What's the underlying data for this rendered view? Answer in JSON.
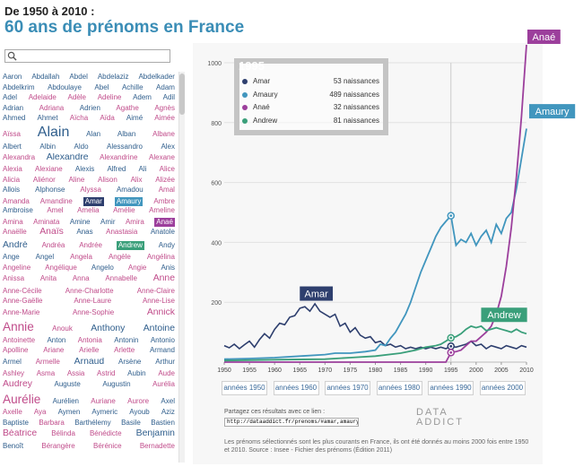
{
  "header": {
    "kicker": "De 1950 à 2010 :",
    "title": "60 ans de prénoms en France"
  },
  "search": {
    "placeholder": "",
    "value": ""
  },
  "colors": {
    "male": "#2f5e8c",
    "female": "#c04b8a",
    "Amar": "#2e3f6e",
    "Amaury": "#4196be",
    "Anaé": "#9c3f9c",
    "Andrew": "#3a9f7a"
  },
  "name_rows": [
    [
      [
        "Aaron",
        "m"
      ],
      [
        "Abdallah",
        "m"
      ],
      [
        "Abdel",
        "m"
      ],
      [
        "Abdelaziz",
        "m"
      ],
      [
        "Abdelkader",
        "m"
      ]
    ],
    [
      [
        "Abdelkrim",
        "m"
      ],
      [
        "Abdoulaye",
        "m"
      ],
      [
        "Abel",
        "m"
      ],
      [
        "Achille",
        "m"
      ],
      [
        "Adam",
        "m"
      ]
    ],
    [
      [
        "Adel",
        "m"
      ],
      [
        "Adelaide",
        "f"
      ],
      [
        "Adèle",
        "f"
      ],
      [
        "Adeline",
        "f"
      ],
      [
        "Adem",
        "m"
      ],
      [
        "Adil",
        "m"
      ]
    ],
    [
      [
        "Adrian",
        "m"
      ],
      [
        "Adriana",
        "f"
      ],
      [
        "Adrien",
        "m"
      ],
      [
        "Agathe",
        "f"
      ],
      [
        "Agnès",
        "f"
      ]
    ],
    [
      [
        "Ahmed",
        "m"
      ],
      [
        "Ahmet",
        "m"
      ],
      [
        "Aïcha",
        "f"
      ],
      [
        "Aïda",
        "f"
      ],
      [
        "Aimé",
        "m"
      ],
      [
        "Aimée",
        "f"
      ]
    ],
    [
      [
        "Aïssa",
        "f"
      ],
      [
        "Alain",
        "m",
        2
      ],
      [
        "Alan",
        "m"
      ],
      [
        "Alban",
        "m"
      ],
      [
        "Albane",
        "f"
      ]
    ],
    [
      [
        "Albert",
        "m"
      ],
      [
        "Albin",
        "m"
      ],
      [
        "Aldo",
        "m"
      ],
      [
        "Alessandro",
        "m"
      ],
      [
        "Alex",
        "m"
      ]
    ],
    [
      [
        "Alexandra",
        "f"
      ],
      [
        "Alexandre",
        "m",
        1.3
      ],
      [
        "Alexandrine",
        "f"
      ],
      [
        "Alexane",
        "f"
      ]
    ],
    [
      [
        "Alexia",
        "f"
      ],
      [
        "Alexiane",
        "f"
      ],
      [
        "Alexis",
        "m"
      ],
      [
        "Alfred",
        "m"
      ],
      [
        "Ali",
        "m"
      ],
      [
        "Alice",
        "f"
      ]
    ],
    [
      [
        "Alicia",
        "f"
      ],
      [
        "Aliénor",
        "f"
      ],
      [
        "Aline",
        "f"
      ],
      [
        "Alison",
        "f"
      ],
      [
        "Alix",
        "f"
      ],
      [
        "Alizée",
        "f"
      ]
    ],
    [
      [
        "Allois",
        "m"
      ],
      [
        "Alphonse",
        "m"
      ],
      [
        "Alyssa",
        "f"
      ],
      [
        "Amadou",
        "m"
      ],
      [
        "Amal",
        "f"
      ]
    ],
    [
      [
        "Amanda",
        "f"
      ],
      [
        "Amandine",
        "f"
      ],
      [
        "Amar",
        "hl-Amar"
      ],
      [
        "Amaury",
        "hl-Amaury"
      ],
      [
        "Ambre",
        "f"
      ]
    ],
    [
      [
        "Ambroise",
        "m"
      ],
      [
        "Amel",
        "f"
      ],
      [
        "Amelia",
        "f"
      ],
      [
        "Amélie",
        "f"
      ],
      [
        "Ameline",
        "f"
      ]
    ],
    [
      [
        "Amina",
        "f"
      ],
      [
        "Aminata",
        "f"
      ],
      [
        "Amine",
        "m"
      ],
      [
        "Amir",
        "m"
      ],
      [
        "Amira",
        "f"
      ],
      [
        "Anaé",
        "hl-Anaé"
      ]
    ],
    [
      [
        "Anaëlle",
        "f"
      ],
      [
        "Anaïs",
        "f",
        1.3
      ],
      [
        "Anas",
        "m"
      ],
      [
        "Anastasia",
        "f"
      ],
      [
        "Anatole",
        "m"
      ]
    ],
    [
      [
        "André",
        "m",
        1.3
      ],
      [
        "Andréa",
        "f"
      ],
      [
        "Andrée",
        "f"
      ],
      [
        "Andrew",
        "hl-Andrew"
      ],
      [
        "Andy",
        "m"
      ]
    ],
    [
      [
        "Ange",
        "m"
      ],
      [
        "Angel",
        "m"
      ],
      [
        "Angela",
        "f"
      ],
      [
        "Angèle",
        "f"
      ],
      [
        "Angélina",
        "f"
      ]
    ],
    [
      [
        "Angeline",
        "f"
      ],
      [
        "Angélique",
        "f"
      ],
      [
        "Angelo",
        "m"
      ],
      [
        "Angie",
        "f"
      ],
      [
        "Anis",
        "m"
      ]
    ],
    [
      [
        "Anissa",
        "f"
      ],
      [
        "Anita",
        "f"
      ],
      [
        "Anna",
        "f"
      ],
      [
        "Annabelle",
        "f"
      ],
      [
        "Anne",
        "f",
        1.3
      ]
    ],
    [
      [
        "Anne-Cécile",
        "f"
      ],
      [
        "Anne-Charlotte",
        "f"
      ],
      [
        "Anne-Claire",
        "f"
      ]
    ],
    [
      [
        "Anne-Gaëlle",
        "f"
      ],
      [
        "Anne-Laure",
        "f"
      ],
      [
        "Anne-Lise",
        "f"
      ]
    ],
    [
      [
        "Anne-Marie",
        "f"
      ],
      [
        "Anne-Sophie",
        "f"
      ],
      [
        "Annick",
        "f",
        1.3
      ]
    ],
    [
      [
        "Annie",
        "f",
        1.7
      ],
      [
        "Anouk",
        "f"
      ],
      [
        "Anthony",
        "m",
        1.3
      ],
      [
        "Antoine",
        "m",
        1.3
      ]
    ],
    [
      [
        "Antoinette",
        "f"
      ],
      [
        "Anton",
        "m"
      ],
      [
        "Antonia",
        "f"
      ],
      [
        "Antonin",
        "m"
      ],
      [
        "Antonio",
        "m"
      ]
    ],
    [
      [
        "Apolline",
        "f"
      ],
      [
        "Ariane",
        "f"
      ],
      [
        "Arielle",
        "f"
      ],
      [
        "Arlette",
        "f"
      ],
      [
        "Armand",
        "m"
      ]
    ],
    [
      [
        "Armel",
        "m"
      ],
      [
        "Armelle",
        "f"
      ],
      [
        "Arnaud",
        "m",
        1.3
      ],
      [
        "Arsène",
        "m"
      ],
      [
        "Arthur",
        "m"
      ]
    ],
    [
      [
        "Ashley",
        "f"
      ],
      [
        "Asma",
        "f"
      ],
      [
        "Assia",
        "f"
      ],
      [
        "Astrid",
        "f"
      ],
      [
        "Aubin",
        "m"
      ],
      [
        "Aude",
        "f"
      ]
    ],
    [
      [
        "Audrey",
        "f",
        1.3
      ],
      [
        "Auguste",
        "m"
      ],
      [
        "Augustin",
        "m"
      ],
      [
        "Aurélia",
        "f"
      ]
    ],
    [
      [
        "Aurélie",
        "f",
        1.7
      ],
      [
        "Aurélien",
        "m"
      ],
      [
        "Auriane",
        "f"
      ],
      [
        "Aurore",
        "f"
      ],
      [
        "Axel",
        "m"
      ]
    ],
    [
      [
        "Axelle",
        "f"
      ],
      [
        "Aya",
        "f"
      ],
      [
        "Aymen",
        "m"
      ],
      [
        "Aymeric",
        "m"
      ],
      [
        "Ayoub",
        "m"
      ],
      [
        "Aziz",
        "m"
      ]
    ],
    [
      [
        "Baptiste",
        "m"
      ],
      [
        "Barbara",
        "f"
      ],
      [
        "Barthélemy",
        "m"
      ],
      [
        "Basile",
        "m"
      ],
      [
        "Bastien",
        "m"
      ]
    ],
    [
      [
        "Béatrice",
        "f",
        1.3
      ],
      [
        "Bélinda",
        "f"
      ],
      [
        "Bénédicte",
        "f"
      ],
      [
        "Benjamin",
        "m",
        1.3
      ]
    ],
    [
      [
        "Benoît",
        "m"
      ],
      [
        "Bérangère",
        "f"
      ],
      [
        "Bérénice",
        "f"
      ],
      [
        "Bernadette",
        "f"
      ]
    ]
  ],
  "hud": {
    "year": "1995",
    "rows": [
      {
        "name": "Amar",
        "value": "53 naissances"
      },
      {
        "name": "Amaury",
        "value": "489 naissances"
      },
      {
        "name": "Anaé",
        "value": "32 naissances"
      },
      {
        "name": "Andrew",
        "value": "81 naissances"
      }
    ]
  },
  "decade_buttons": [
    "années 1950",
    "années 1960",
    "années 1970",
    "années 1980",
    "années 1990",
    "années 2000"
  ],
  "share": {
    "label": "Partagez ces résultats avec ce lien :",
    "url": "http://dataaddict.fr/prenoms/#amar,amaury,anae,andrew"
  },
  "brand": "DATA ADDICT",
  "footnote": "Les prénoms sélectionnés sont les plus courants en France, ils ont été donnés au moins 2000 fois entre 1950 et 2010. Source : Insee - Fichier des prénoms (Édition 2011)",
  "chart_data": {
    "type": "line",
    "x_ticks": [
      "1950",
      "1955",
      "1960",
      "1965",
      "1970",
      "1975",
      "1980",
      "1985",
      "1990",
      "1995",
      "2000",
      "2005",
      "2010"
    ],
    "y_ticks": [
      "200",
      "400",
      "600",
      "800",
      "1000"
    ],
    "xlim": [
      1950,
      2010
    ],
    "ylim": [
      0,
      1000
    ],
    "grid": "y",
    "series": [
      {
        "name": "Amar",
        "color": "#2e3f6e",
        "label_pos": "top-left",
        "points": [
          [
            1950,
            55
          ],
          [
            1951,
            48
          ],
          [
            1952,
            60
          ],
          [
            1953,
            45
          ],
          [
            1954,
            58
          ],
          [
            1955,
            70
          ],
          [
            1956,
            50
          ],
          [
            1957,
            75
          ],
          [
            1958,
            95
          ],
          [
            1959,
            80
          ],
          [
            1960,
            110
          ],
          [
            1961,
            130
          ],
          [
            1962,
            125
          ],
          [
            1963,
            150
          ],
          [
            1964,
            155
          ],
          [
            1965,
            180
          ],
          [
            1966,
            185
          ],
          [
            1967,
            170
          ],
          [
            1968,
            195
          ],
          [
            1969,
            170
          ],
          [
            1970,
            160
          ],
          [
            1971,
            150
          ],
          [
            1972,
            160
          ],
          [
            1973,
            120
          ],
          [
            1974,
            130
          ],
          [
            1975,
            100
          ],
          [
            1976,
            115
          ],
          [
            1977,
            90
          ],
          [
            1978,
            80
          ],
          [
            1979,
            85
          ],
          [
            1980,
            65
          ],
          [
            1981,
            70
          ],
          [
            1982,
            55
          ],
          [
            1983,
            60
          ],
          [
            1984,
            50
          ],
          [
            1985,
            55
          ],
          [
            1986,
            45
          ],
          [
            1987,
            50
          ],
          [
            1988,
            45
          ],
          [
            1989,
            50
          ],
          [
            1990,
            45
          ],
          [
            1991,
            50
          ],
          [
            1992,
            45
          ],
          [
            1993,
            50
          ],
          [
            1994,
            45
          ],
          [
            1995,
            53
          ],
          [
            1996,
            50
          ],
          [
            1997,
            55
          ],
          [
            1998,
            60
          ],
          [
            1999,
            70
          ],
          [
            2000,
            55
          ],
          [
            2001,
            60
          ],
          [
            2002,
            45
          ],
          [
            2003,
            55
          ],
          [
            2004,
            50
          ],
          [
            2005,
            45
          ],
          [
            2006,
            55
          ],
          [
            2007,
            50
          ],
          [
            2008,
            45
          ],
          [
            2009,
            55
          ],
          [
            2010,
            50
          ]
        ]
      },
      {
        "name": "Amaury",
        "color": "#4196be",
        "label_pos": "right",
        "points": [
          [
            1950,
            10
          ],
          [
            1955,
            12
          ],
          [
            1960,
            15
          ],
          [
            1965,
            20
          ],
          [
            1970,
            25
          ],
          [
            1972,
            30
          ],
          [
            1975,
            30
          ],
          [
            1978,
            35
          ],
          [
            1980,
            40
          ],
          [
            1981,
            60
          ],
          [
            1982,
            55
          ],
          [
            1983,
            80
          ],
          [
            1984,
            100
          ],
          [
            1985,
            130
          ],
          [
            1986,
            160
          ],
          [
            1987,
            200
          ],
          [
            1988,
            250
          ],
          [
            1989,
            300
          ],
          [
            1990,
            340
          ],
          [
            1991,
            380
          ],
          [
            1992,
            420
          ],
          [
            1993,
            450
          ],
          [
            1994,
            470
          ],
          [
            1995,
            489
          ],
          [
            1996,
            390
          ],
          [
            1997,
            410
          ],
          [
            1998,
            400
          ],
          [
            1999,
            430
          ],
          [
            2000,
            390
          ],
          [
            2001,
            420
          ],
          [
            2002,
            440
          ],
          [
            2003,
            400
          ],
          [
            2004,
            460
          ],
          [
            2005,
            430
          ],
          [
            2006,
            480
          ],
          [
            2007,
            500
          ],
          [
            2008,
            580
          ],
          [
            2009,
            680
          ],
          [
            2010,
            780
          ]
        ]
      },
      {
        "name": "Anaé",
        "color": "#9c3f9c",
        "label_pos": "top",
        "points": [
          [
            1950,
            0
          ],
          [
            1994,
            0
          ],
          [
            1995,
            32
          ],
          [
            1996,
            35
          ],
          [
            1997,
            40
          ],
          [
            1998,
            55
          ],
          [
            1999,
            70
          ],
          [
            2000,
            70
          ],
          [
            2001,
            85
          ],
          [
            2002,
            100
          ],
          [
            2003,
            120
          ],
          [
            2004,
            160
          ],
          [
            2005,
            220
          ],
          [
            2006,
            320
          ],
          [
            2007,
            450
          ],
          [
            2008,
            620
          ],
          [
            2009,
            820
          ],
          [
            2010,
            1060
          ]
        ]
      },
      {
        "name": "Andrew",
        "color": "#3a9f7a",
        "label_pos": "top",
        "points": [
          [
            1950,
            5
          ],
          [
            1960,
            8
          ],
          [
            1970,
            10
          ],
          [
            1975,
            15
          ],
          [
            1980,
            20
          ],
          [
            1985,
            30
          ],
          [
            1988,
            40
          ],
          [
            1990,
            50
          ],
          [
            1992,
            55
          ],
          [
            1993,
            60
          ],
          [
            1994,
            70
          ],
          [
            1995,
            81
          ],
          [
            1996,
            85
          ],
          [
            1997,
            95
          ],
          [
            1998,
            110
          ],
          [
            1999,
            120
          ],
          [
            2000,
            115
          ],
          [
            2001,
            120
          ],
          [
            2002,
            105
          ],
          [
            2003,
            110
          ],
          [
            2004,
            115
          ],
          [
            2005,
            110
          ],
          [
            2006,
            105
          ],
          [
            2007,
            100
          ],
          [
            2008,
            110
          ],
          [
            2009,
            100
          ],
          [
            2010,
            95
          ]
        ]
      }
    ],
    "highlight_year": 1995
  }
}
